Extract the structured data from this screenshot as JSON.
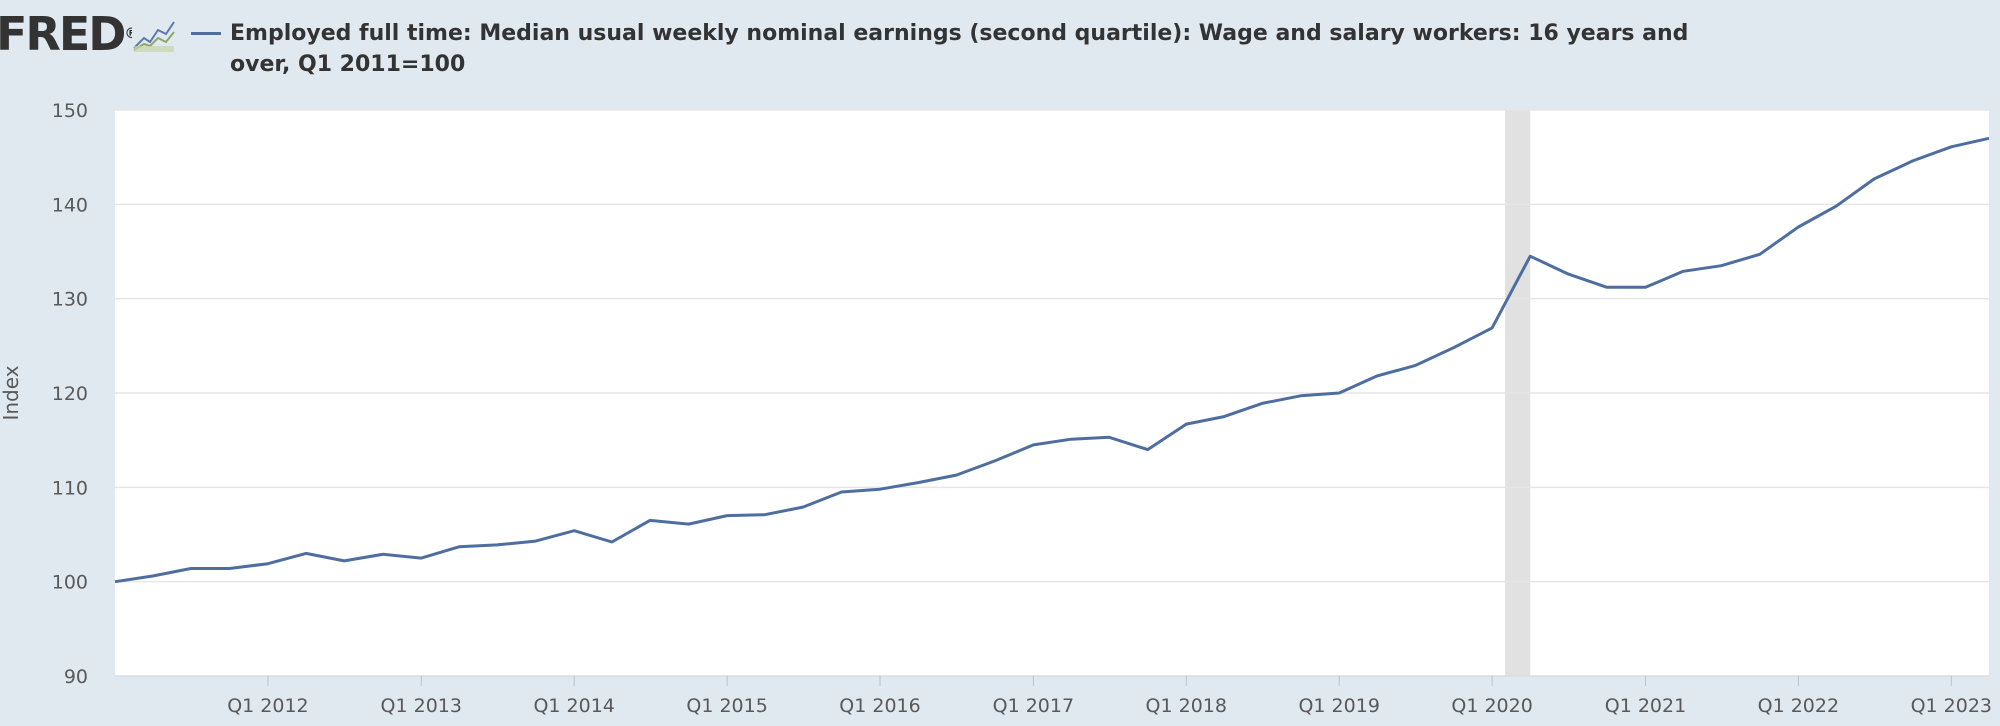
{
  "branding": {
    "logo_text": "FRED",
    "logo_mark": "®",
    "logo_icon": "fred-chart-icon"
  },
  "colors": {
    "background": "#e1e9f0",
    "plot_bg": "#ffffff",
    "series": "#4e6ea0",
    "recession": "#e1e1e1",
    "grid": "#e6e6e6"
  },
  "chart_data": {
    "type": "line",
    "title": "Employed full time: Median usual weekly nominal earnings (second quartile): Wage and salary workers: 16 years and over, Q1 2011=100",
    "ylabel": "Index",
    "xlabel": "",
    "ylim": [
      90,
      150
    ],
    "xlim": [
      "2011-01-01",
      "2023-04-01"
    ],
    "yticks": [
      90,
      100,
      110,
      120,
      130,
      140,
      150
    ],
    "xticks": [
      {
        "label": "Q1 2012",
        "date": "2012-01-01"
      },
      {
        "label": "Q1 2013",
        "date": "2013-01-01"
      },
      {
        "label": "Q1 2014",
        "date": "2014-01-01"
      },
      {
        "label": "Q1 2015",
        "date": "2015-01-01"
      },
      {
        "label": "Q1 2016",
        "date": "2016-01-01"
      },
      {
        "label": "Q1 2017",
        "date": "2017-01-01"
      },
      {
        "label": "Q1 2018",
        "date": "2018-01-01"
      },
      {
        "label": "Q1 2019",
        "date": "2019-01-01"
      },
      {
        "label": "Q1 2020",
        "date": "2020-01-01"
      },
      {
        "label": "Q1 2021",
        "date": "2021-01-01"
      },
      {
        "label": "Q1 2022",
        "date": "2022-01-01"
      },
      {
        "label": "Q1 2023",
        "date": "2023-01-01"
      }
    ],
    "recessions": [
      {
        "start": "2020-02-01",
        "end": "2020-04-01"
      }
    ],
    "grid": true,
    "series": [
      {
        "name": "Employed full time: Median usual weekly nominal earnings (second quartile): Wage and salary workers: 16 years and over, Q1 2011=100",
        "x": [
          "2011-01-01",
          "2011-04-01",
          "2011-07-01",
          "2011-10-01",
          "2012-01-01",
          "2012-04-01",
          "2012-07-01",
          "2012-10-01",
          "2013-01-01",
          "2013-04-01",
          "2013-07-01",
          "2013-10-01",
          "2014-01-01",
          "2014-04-01",
          "2014-07-01",
          "2014-10-01",
          "2015-01-01",
          "2015-04-01",
          "2015-07-01",
          "2015-10-01",
          "2016-01-01",
          "2016-04-01",
          "2016-07-01",
          "2016-10-01",
          "2017-01-01",
          "2017-04-01",
          "2017-07-01",
          "2017-10-01",
          "2018-01-01",
          "2018-04-01",
          "2018-07-01",
          "2018-10-01",
          "2019-01-01",
          "2019-04-01",
          "2019-07-01",
          "2019-10-01",
          "2020-01-01",
          "2020-04-01",
          "2020-07-01",
          "2020-10-01",
          "2021-01-01",
          "2021-04-01",
          "2021-07-01",
          "2021-10-01",
          "2022-01-01",
          "2022-04-01",
          "2022-07-01",
          "2022-10-01",
          "2023-01-01",
          "2023-04-01"
        ],
        "values": [
          100.0,
          100.6,
          101.4,
          101.4,
          101.9,
          103.0,
          102.2,
          102.9,
          102.5,
          103.7,
          103.9,
          104.3,
          105.4,
          104.2,
          106.5,
          106.1,
          107.0,
          107.1,
          107.9,
          109.5,
          109.8,
          110.5,
          111.3,
          112.8,
          114.5,
          115.1,
          115.3,
          114.0,
          116.7,
          117.5,
          118.9,
          119.7,
          120.0,
          121.8,
          122.9,
          124.8,
          126.9,
          134.5,
          132.6,
          131.2,
          131.2,
          132.9,
          133.5,
          134.7,
          137.6,
          139.8,
          142.7,
          144.6,
          146.1,
          147.0
        ]
      }
    ]
  }
}
